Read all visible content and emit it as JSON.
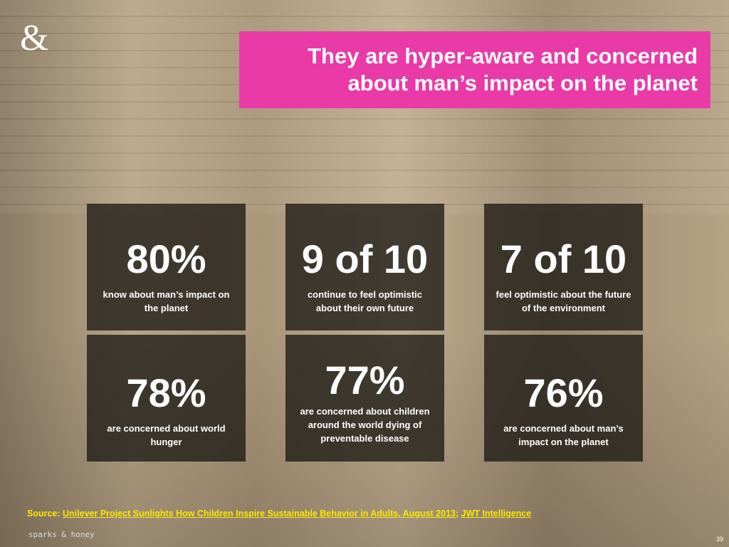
{
  "logo": "&",
  "title": [
    "They are hyper-aware and concerned",
    "about man’s impact on the planet"
  ],
  "stats": [
    {
      "value": "80%",
      "label": "know about man’s impact on the planet"
    },
    {
      "value": "9 of 10",
      "label": "continue to feel optimistic about their own future"
    },
    {
      "value": "7 of 10",
      "label": "feel optimistic about the future of the environment"
    },
    {
      "value": "78%",
      "label": "are concerned about world hunger"
    },
    {
      "value": "77%",
      "label": "are concerned about children around the world dying of preventable disease"
    },
    {
      "value": "76%",
      "label": "are concerned about man’s impact on the planet"
    }
  ],
  "source": {
    "label": "Source:",
    "links": [
      "Unilever Project Sunlights How Children Inspire Sustainable Behavior in Adults, August 2013;",
      "JWT Intelligence"
    ]
  },
  "brand": "sparks & honey",
  "page_number": "39"
}
